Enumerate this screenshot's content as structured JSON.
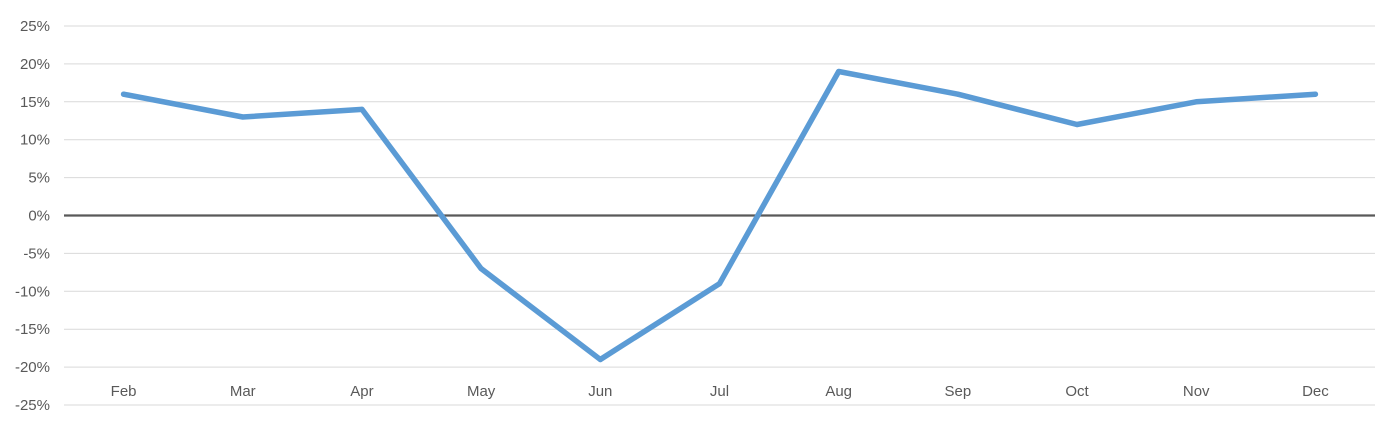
{
  "chart_data": {
    "type": "line",
    "title": "",
    "xlabel": "",
    "ylabel": "",
    "categories": [
      "Feb",
      "Mar",
      "Apr",
      "May",
      "Jun",
      "Jul",
      "Aug",
      "Sep",
      "Oct",
      "Nov",
      "Dec"
    ],
    "series": [
      {
        "values": [
          16,
          13,
          14,
          -7,
          -19,
          -9,
          19,
          16,
          12,
          15,
          16
        ]
      }
    ],
    "ylim": [
      -25,
      25
    ],
    "ytick_step": 5,
    "ytick_format": "percent",
    "grid": "horizontal",
    "legend": "none",
    "colors": {
      "series": "#5b9bd5",
      "gridline": "#d9d9d9",
      "zero_line": "#595959",
      "labels": "#595959"
    }
  }
}
